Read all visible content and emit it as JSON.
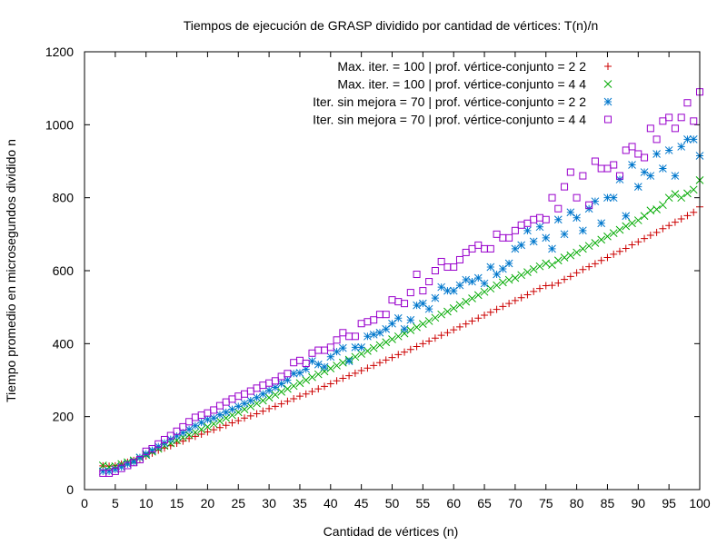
{
  "chart_data": {
    "type": "scatter",
    "title": "Tiempos de ejecución de GRASP dividido por cantidad de vértices: T(n)/n",
    "xlabel": "Cantidad de vértices (n)",
    "ylabel": "Tiempo promedio en microsegundos dividido n",
    "xlim": [
      0,
      100
    ],
    "ylim": [
      0,
      1200
    ],
    "xticks": [
      0,
      5,
      10,
      15,
      20,
      25,
      30,
      35,
      40,
      45,
      50,
      55,
      60,
      65,
      70,
      75,
      80,
      85,
      90,
      95,
      100
    ],
    "yticks": [
      0,
      200,
      400,
      600,
      800,
      1000,
      1200
    ],
    "grid": false,
    "legend_position": "top-right",
    "series": [
      {
        "name": "Max. iter. = 100 | prof. vértice-conjunto = 2 2",
        "marker": "plus",
        "color": "#cc0000",
        "x": [
          3,
          4,
          5,
          6,
          7,
          8,
          9,
          10,
          11,
          12,
          13,
          14,
          15,
          16,
          17,
          18,
          19,
          20,
          21,
          22,
          23,
          24,
          25,
          26,
          27,
          28,
          29,
          30,
          31,
          32,
          33,
          34,
          35,
          36,
          37,
          38,
          39,
          40,
          41,
          42,
          43,
          44,
          45,
          46,
          47,
          48,
          49,
          50,
          51,
          52,
          53,
          54,
          55,
          56,
          57,
          58,
          59,
          60,
          61,
          62,
          63,
          64,
          65,
          66,
          67,
          68,
          69,
          70,
          71,
          72,
          73,
          74,
          75,
          76,
          77,
          78,
          79,
          80,
          81,
          82,
          83,
          84,
          85,
          86,
          87,
          88,
          89,
          90,
          91,
          92,
          93,
          94,
          95,
          96,
          97,
          98,
          99,
          100
        ],
        "y": [
          65,
          64,
          65,
          70,
          75,
          80,
          85,
          92,
          100,
          108,
          114,
          120,
          127,
          133,
          140,
          146,
          152,
          158,
          164,
          170,
          176,
          183,
          189,
          196,
          202,
          208,
          215,
          222,
          228,
          235,
          242,
          249,
          256,
          262,
          269,
          276,
          283,
          290,
          298,
          305,
          312,
          319,
          326,
          333,
          340,
          348,
          355,
          362,
          370,
          377,
          384,
          392,
          400,
          407,
          415,
          423,
          430,
          438,
          446,
          454,
          462,
          470,
          478,
          486,
          494,
          502,
          510,
          518,
          526,
          534,
          543,
          551,
          559,
          560,
          566,
          576,
          584,
          594,
          603,
          611,
          619,
          628,
          636,
          645,
          653,
          661,
          671,
          679,
          688,
          697,
          705,
          715,
          724,
          733,
          742,
          751,
          760,
          775
        ]
      },
      {
        "name": "Max. iter. = 100 | prof. vértice-conjunto = 4 4",
        "marker": "cross",
        "color": "#00aa00",
        "x": [
          3,
          4,
          5,
          6,
          7,
          8,
          9,
          10,
          11,
          12,
          13,
          14,
          15,
          16,
          17,
          18,
          19,
          20,
          21,
          22,
          23,
          24,
          25,
          26,
          27,
          28,
          29,
          30,
          31,
          32,
          33,
          34,
          35,
          36,
          37,
          38,
          39,
          40,
          41,
          42,
          43,
          44,
          45,
          46,
          47,
          48,
          49,
          50,
          51,
          52,
          53,
          54,
          55,
          56,
          57,
          58,
          59,
          60,
          61,
          62,
          63,
          64,
          65,
          66,
          67,
          68,
          69,
          70,
          71,
          72,
          73,
          74,
          75,
          76,
          77,
          78,
          79,
          80,
          81,
          82,
          83,
          84,
          85,
          86,
          87,
          88,
          89,
          90,
          91,
          92,
          93,
          94,
          95,
          96,
          97,
          98,
          99,
          100
        ],
        "y": [
          66,
          62,
          64,
          70,
          75,
          80,
          87,
          95,
          104,
          112,
          120,
          127,
          135,
          143,
          150,
          157,
          165,
          172,
          180,
          188,
          196,
          204,
          212,
          220,
          228,
          236,
          244,
          252,
          260,
          268,
          276,
          284,
          292,
          300,
          308,
          316,
          324,
          332,
          340,
          348,
          356,
          364,
          372,
          380,
          388,
          396,
          404,
          412,
          420,
          428,
          437,
          445,
          454,
          462,
          471,
          480,
          488,
          497,
          506,
          515,
          524,
          533,
          542,
          551,
          560,
          568,
          575,
          580,
          588,
          596,
          604,
          612,
          620,
          616,
          628,
          636,
          642,
          650,
          660,
          668,
          676,
          685,
          694,
          703,
          712,
          722,
          730,
          738,
          750,
          765,
          768,
          780,
          800,
          810,
          800,
          812,
          822,
          848
        ]
      },
      {
        "name": "Iter. sin mejora = 70 | prof. vértice-conjunto = 2 2",
        "marker": "star",
        "color": "#0077cc",
        "x": [
          3,
          4,
          5,
          6,
          7,
          8,
          9,
          10,
          11,
          12,
          13,
          14,
          15,
          16,
          17,
          18,
          19,
          20,
          21,
          22,
          23,
          24,
          25,
          26,
          27,
          28,
          29,
          30,
          31,
          32,
          33,
          34,
          35,
          36,
          37,
          38,
          39,
          40,
          41,
          42,
          43,
          44,
          45,
          46,
          47,
          48,
          49,
          50,
          51,
          52,
          53,
          54,
          55,
          56,
          57,
          58,
          59,
          60,
          61,
          62,
          63,
          64,
          65,
          66,
          67,
          68,
          69,
          70,
          71,
          72,
          73,
          74,
          75,
          76,
          77,
          78,
          79,
          80,
          81,
          82,
          83,
          84,
          85,
          86,
          87,
          88,
          89,
          90,
          91,
          92,
          93,
          94,
          95,
          96,
          97,
          98,
          99,
          100
        ],
        "y": [
          50,
          50,
          55,
          62,
          70,
          76,
          88,
          98,
          108,
          118,
          128,
          138,
          147,
          156,
          165,
          175,
          184,
          192,
          196,
          205,
          212,
          220,
          228,
          236,
          244,
          252,
          262,
          272,
          280,
          290,
          300,
          318,
          320,
          330,
          352,
          343,
          336,
          364,
          378,
          388,
          352,
          390,
          390,
          420,
          425,
          430,
          440,
          455,
          470,
          440,
          465,
          505,
          510,
          495,
          525,
          555,
          545,
          545,
          560,
          575,
          570,
          580,
          565,
          610,
          590,
          605,
          620,
          660,
          670,
          710,
          680,
          720,
          690,
          660,
          740,
          700,
          760,
          745,
          710,
          770,
          790,
          730,
          800,
          800,
          850,
          750,
          890,
          830,
          870,
          860,
          920,
          880,
          930,
          860,
          940,
          960,
          960,
          915
        ]
      },
      {
        "name": "Iter. sin mejora = 70 | prof. vértice-conjunto = 4 4",
        "marker": "square",
        "color": "#9900cc",
        "x": [
          3,
          4,
          5,
          6,
          7,
          8,
          9,
          10,
          11,
          12,
          13,
          14,
          15,
          16,
          17,
          18,
          19,
          20,
          21,
          22,
          23,
          24,
          25,
          26,
          27,
          28,
          29,
          30,
          31,
          32,
          33,
          34,
          35,
          36,
          37,
          38,
          39,
          40,
          41,
          42,
          43,
          44,
          45,
          46,
          47,
          48,
          49,
          50,
          51,
          52,
          53,
          54,
          55,
          56,
          57,
          58,
          59,
          60,
          61,
          62,
          63,
          64,
          65,
          66,
          67,
          68,
          69,
          70,
          71,
          72,
          73,
          74,
          75,
          76,
          77,
          78,
          79,
          80,
          81,
          82,
          83,
          84,
          85,
          86,
          87,
          88,
          89,
          90,
          91,
          92,
          93,
          94,
          95,
          96,
          97,
          98,
          99,
          100
        ],
        "y": [
          45,
          45,
          50,
          58,
          66,
          74,
          82,
          105,
          112,
          125,
          137,
          148,
          160,
          172,
          186,
          198,
          204,
          210,
          218,
          230,
          240,
          248,
          256,
          262,
          270,
          278,
          286,
          292,
          298,
          310,
          318,
          348,
          354,
          346,
          374,
          382,
          382,
          390,
          410,
          430,
          420,
          420,
          455,
          460,
          465,
          480,
          480,
          520,
          515,
          510,
          540,
          590,
          545,
          570,
          600,
          625,
          610,
          610,
          630,
          650,
          660,
          670,
          660,
          660,
          700,
          690,
          690,
          710,
          725,
          730,
          740,
          745,
          740,
          800,
          770,
          830,
          870,
          800,
          860,
          780,
          900,
          880,
          880,
          890,
          860,
          930,
          940,
          920,
          910,
          990,
          960,
          1010,
          1020,
          990,
          1020,
          1060,
          1010,
          1090
        ]
      }
    ]
  }
}
